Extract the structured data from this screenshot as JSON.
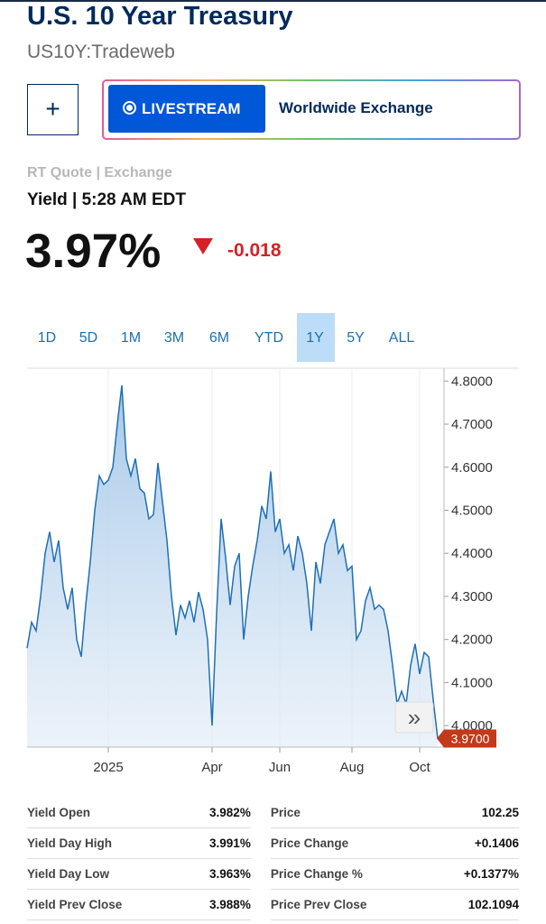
{
  "header": {
    "title": "U.S. 10 Year Treasury",
    "subtitle": "US10Y:Tradeweb"
  },
  "controls": {
    "add": "+",
    "livestream": "LIVESTREAM",
    "exchange": "Worldwide Exchange",
    "expand": "»"
  },
  "quote": {
    "source": "RT Quote | Exchange",
    "label": "Yield | 5:28 AM EDT",
    "value": "3.97%",
    "change": "-0.018"
  },
  "tabs": {
    "items": [
      "1D",
      "5D",
      "1M",
      "3M",
      "6M",
      "YTD",
      "1Y",
      "5Y",
      "ALL"
    ],
    "active": 6
  },
  "chart_data": {
    "type": "line",
    "color": "#1f6fb5",
    "fill": true,
    "categories": [
      null,
      null,
      null,
      null,
      null,
      null,
      null,
      null,
      null,
      null,
      null,
      null,
      null,
      null,
      null,
      null,
      null,
      null,
      "2025",
      null,
      null,
      null,
      null,
      null,
      null,
      null,
      null,
      null,
      null,
      null,
      null,
      null,
      null,
      null,
      null,
      null,
      null,
      null,
      null,
      null,
      null,
      "Apr",
      null,
      null,
      null,
      null,
      null,
      null,
      null,
      null,
      null,
      null,
      null,
      null,
      null,
      null,
      "Jun",
      null,
      null,
      null,
      null,
      null,
      null,
      null,
      null,
      null,
      null,
      null,
      null,
      null,
      null,
      null,
      "Aug",
      null,
      null,
      null,
      null,
      null,
      null,
      null,
      null,
      null,
      null,
      null,
      null,
      null,
      null,
      "Oct",
      null,
      null,
      null,
      null
    ],
    "values": [
      4.18,
      4.24,
      4.22,
      4.3,
      4.4,
      4.45,
      4.38,
      4.43,
      4.32,
      4.27,
      4.32,
      4.2,
      4.16,
      4.28,
      4.38,
      4.5,
      4.58,
      4.56,
      4.57,
      4.6,
      4.7,
      4.79,
      4.62,
      4.58,
      4.62,
      4.55,
      4.54,
      4.48,
      4.49,
      4.61,
      4.52,
      4.43,
      4.3,
      4.21,
      4.28,
      4.25,
      4.29,
      4.24,
      4.31,
      4.27,
      4.2,
      4.0,
      4.26,
      4.48,
      4.39,
      4.28,
      4.37,
      4.4,
      4.2,
      4.3,
      4.37,
      4.43,
      4.51,
      4.48,
      4.59,
      4.45,
      4.48,
      4.4,
      4.42,
      4.36,
      4.44,
      4.4,
      4.33,
      4.22,
      4.38,
      4.33,
      4.42,
      4.45,
      4.48,
      4.4,
      4.42,
      4.36,
      4.37,
      4.2,
      4.22,
      4.29,
      4.32,
      4.27,
      4.28,
      4.27,
      4.22,
      4.14,
      4.05,
      4.08,
      4.05,
      4.14,
      4.19,
      4.12,
      4.17,
      4.16,
      4.06,
      3.97
    ],
    "ylim": [
      3.95,
      4.83
    ],
    "yticks": [
      {
        "value": 4.0,
        "label": "4.0000"
      },
      {
        "value": 4.1,
        "label": "4.1000"
      },
      {
        "value": 4.2,
        "label": "4.2000"
      },
      {
        "value": 4.3,
        "label": "4.3000"
      },
      {
        "value": 4.4,
        "label": "4.4000"
      },
      {
        "value": 4.5,
        "label": "4.5000"
      },
      {
        "value": 4.6,
        "label": "4.6000"
      },
      {
        "value": 4.7,
        "label": "4.7000"
      },
      {
        "value": 4.8,
        "label": "4.8000"
      }
    ],
    "last_value_label": {
      "value": 3.97,
      "label": "3.9700"
    }
  },
  "stats": {
    "rows": [
      [
        "Yield Open",
        "3.982%",
        "Price",
        "102.25"
      ],
      [
        "Yield Day High",
        "3.991%",
        "Price Change",
        "+0.1406"
      ],
      [
        "Yield Day Low",
        "3.963%",
        "Price Change %",
        "+0.1377%"
      ],
      [
        "Yield Prev Close",
        "3.988%",
        "Price Prev Close",
        "102.1094"
      ]
    ]
  }
}
